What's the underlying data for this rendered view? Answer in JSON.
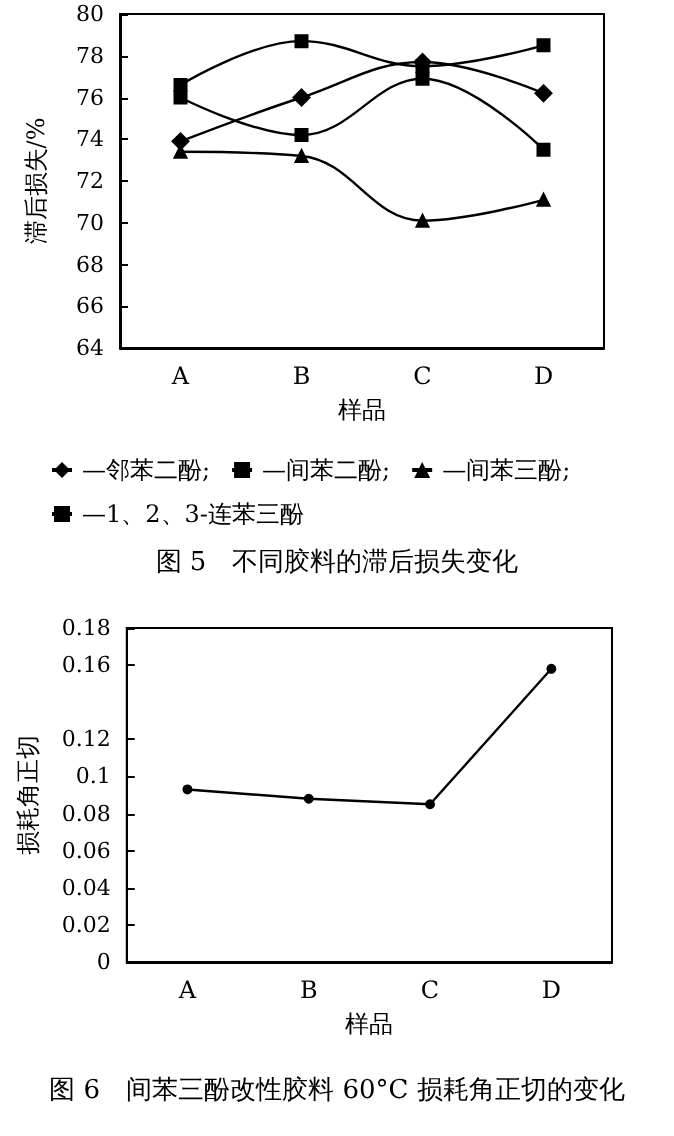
{
  "chart_data": [
    {
      "type": "line",
      "title": "图 5　不同胶料的滞后损失变化",
      "xlabel": "样品",
      "ylabel": "滞后损失/%",
      "categories": [
        "A",
        "B",
        "C",
        "D"
      ],
      "series": [
        {
          "name": "—邻苯二酚;",
          "color": "#000000",
          "marker": "diamond",
          "values": [
            73.9,
            76.0,
            77.7,
            76.2
          ]
        },
        {
          "name": "—间苯二酚;",
          "color": "#000000",
          "marker": "square",
          "values": [
            76.6,
            78.7,
            77.5,
            78.5
          ]
        },
        {
          "name": "—间苯三酚;",
          "color": "#000000",
          "marker": "triangle",
          "values": [
            73.4,
            73.2,
            70.1,
            71.1
          ]
        },
        {
          "name": "—1、2、3-连苯三酚",
          "color": "#000000",
          "marker": "square",
          "values": [
            76.0,
            74.2,
            76.9,
            73.5
          ]
        }
      ],
      "ylim": [
        64,
        80
      ],
      "yticks": [
        64,
        66,
        68,
        70,
        72,
        74,
        76,
        78,
        80
      ],
      "grid": false,
      "legend": "bottom"
    },
    {
      "type": "line",
      "title": "图 6　间苯三酚改性胶料 60°C 损耗角正切的变化",
      "xlabel": "样品",
      "ylabel": "损耗角正切",
      "categories": [
        "A",
        "B",
        "C",
        "D"
      ],
      "series": [
        {
          "color": "#000000",
          "marker": "circle",
          "values": [
            0.093,
            0.088,
            0.085,
            0.158
          ]
        }
      ],
      "ylim": [
        0,
        0.18
      ],
      "yticks": [
        0,
        0.02,
        0.04,
        0.06,
        0.08,
        {
          "value": 0.1,
          "label": "0.1"
        },
        0.12,
        0.16,
        0.18
      ],
      "grid": false,
      "legend": false
    }
  ]
}
